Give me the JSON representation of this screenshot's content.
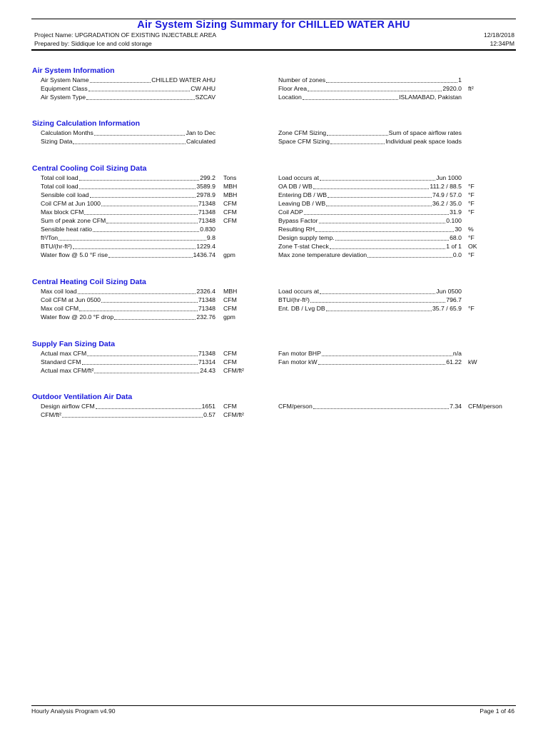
{
  "header": {
    "title": "Air System Sizing Summary for CHILLED WATER AHU",
    "project": "Project Name: UPGRADATION OF EXISTING INJECTABLE AREA",
    "prepared": "Prepared by: Siddique Ice and cold storage",
    "date": "12/18/2018",
    "time": "12:34PM"
  },
  "sections": [
    {
      "title": "Air System Information",
      "left": [
        {
          "label": "Air System Name",
          "value": "CHILLED WATER AHU",
          "unit": ""
        },
        {
          "label": "Equipment Class",
          "value": "CW AHU",
          "unit": ""
        },
        {
          "label": "Air System Type",
          "value": "SZCAV",
          "unit": ""
        }
      ],
      "right": [
        {
          "label": "Number of zones",
          "value": "1",
          "unit": ""
        },
        {
          "label": "Floor Area",
          "value": "2920.0",
          "unit": "ft²"
        },
        {
          "label": "Location",
          "value": "ISLAMABAD, Pakistan",
          "unit": ""
        }
      ]
    },
    {
      "title": "Sizing Calculation Information",
      "left": [
        {
          "label": "Calculation Months",
          "value": "Jan to Dec",
          "unit": ""
        },
        {
          "label": "Sizing Data",
          "value": "Calculated",
          "unit": ""
        }
      ],
      "right": [
        {
          "label": "Zone CFM Sizing",
          "value": "Sum of space airflow rates",
          "unit": ""
        },
        {
          "label": "Space CFM Sizing",
          "value": "Individual peak space loads",
          "unit": ""
        }
      ]
    },
    {
      "title": "Central Cooling Coil Sizing Data",
      "left": [
        {
          "label": "Total coil load",
          "value": "299.2",
          "unit": "Tons"
        },
        {
          "label": "Total coil load",
          "value": "3589.9",
          "unit": "MBH"
        },
        {
          "label": "Sensible coil load",
          "value": "2978.9",
          "unit": "MBH"
        },
        {
          "label": "Coil CFM at Jun 1000",
          "value": "71348",
          "unit": "CFM"
        },
        {
          "label": "Max block CFM",
          "value": "71348",
          "unit": "CFM"
        },
        {
          "label": "Sum of peak zone CFM",
          "value": "71348",
          "unit": "CFM"
        },
        {
          "label": "Sensible heat ratio",
          "value": "0.830",
          "unit": ""
        },
        {
          "label": "ft²/Ton",
          "value": "9.8",
          "unit": ""
        },
        {
          "label": "BTU/(hr-ft²)",
          "value": "1229.4",
          "unit": ""
        },
        {
          "label": "Water flow @ 5.0 °F rise",
          "value": "1436.74",
          "unit": "gpm"
        }
      ],
      "right": [
        {
          "label": "Load occurs at",
          "value": "Jun 1000",
          "unit": ""
        },
        {
          "label": "OA DB / WB",
          "value": "111.2 / 88.5",
          "unit": "°F"
        },
        {
          "label": "Entering DB / WB",
          "value": "74.9 / 57.0",
          "unit": "°F"
        },
        {
          "label": "Leaving DB / WB",
          "value": "36.2 / 35.0",
          "unit": "°F"
        },
        {
          "label": "Coil ADP",
          "value": "31.9",
          "unit": "°F"
        },
        {
          "label": "Bypass Factor",
          "value": "0.100",
          "unit": ""
        },
        {
          "label": "Resulting RH",
          "value": "30",
          "unit": "%"
        },
        {
          "label": "Design supply temp.",
          "value": "68.0",
          "unit": "°F"
        },
        {
          "label": "Zone T-stat Check",
          "value": "1 of 1",
          "unit": "OK"
        },
        {
          "label": "Max zone temperature deviation",
          "value": "0.0",
          "unit": "°F"
        }
      ]
    },
    {
      "title": "Central Heating Coil Sizing Data",
      "left": [
        {
          "label": "Max coil load",
          "value": "2326.4",
          "unit": "MBH"
        },
        {
          "label": "Coil CFM at Jun 0500",
          "value": "71348",
          "unit": "CFM"
        },
        {
          "label": "Max coil CFM",
          "value": "71348",
          "unit": "CFM"
        },
        {
          "label": "Water flow @ 20.0 °F drop",
          "value": "232.76",
          "unit": "gpm"
        }
      ],
      "right": [
        {
          "label": "Load occurs at",
          "value": "Jun 0500",
          "unit": ""
        },
        {
          "label": "BTU/(hr-ft²)",
          "value": "796.7",
          "unit": ""
        },
        {
          "label": "Ent. DB / Lvg DB",
          "value": "35.7 / 65.9",
          "unit": "°F"
        }
      ]
    },
    {
      "title": "Supply Fan Sizing Data",
      "left": [
        {
          "label": "Actual max CFM",
          "value": "71348",
          "unit": "CFM"
        },
        {
          "label": "Standard CFM",
          "value": "71314",
          "unit": "CFM"
        },
        {
          "label": "Actual max CFM/ft²",
          "value": "24.43",
          "unit": "CFM/ft²"
        }
      ],
      "right": [
        {
          "label": "Fan motor BHP",
          "value": "n/a",
          "unit": ""
        },
        {
          "label": "Fan motor kW",
          "value": "61.22",
          "unit": "kW"
        }
      ]
    },
    {
      "title": "Outdoor Ventilation Air Data",
      "left": [
        {
          "label": "Design airflow CFM",
          "value": "1651",
          "unit": "CFM"
        },
        {
          "label": "CFM/ft²",
          "value": "0.57",
          "unit": "CFM/ft²"
        }
      ],
      "right": [
        {
          "label": "CFM/person",
          "value": "7.34",
          "unit": "CFM/person"
        }
      ]
    }
  ],
  "footer": {
    "program": "Hourly Analysis Program v4.90",
    "page": "Page   1  of  46"
  }
}
